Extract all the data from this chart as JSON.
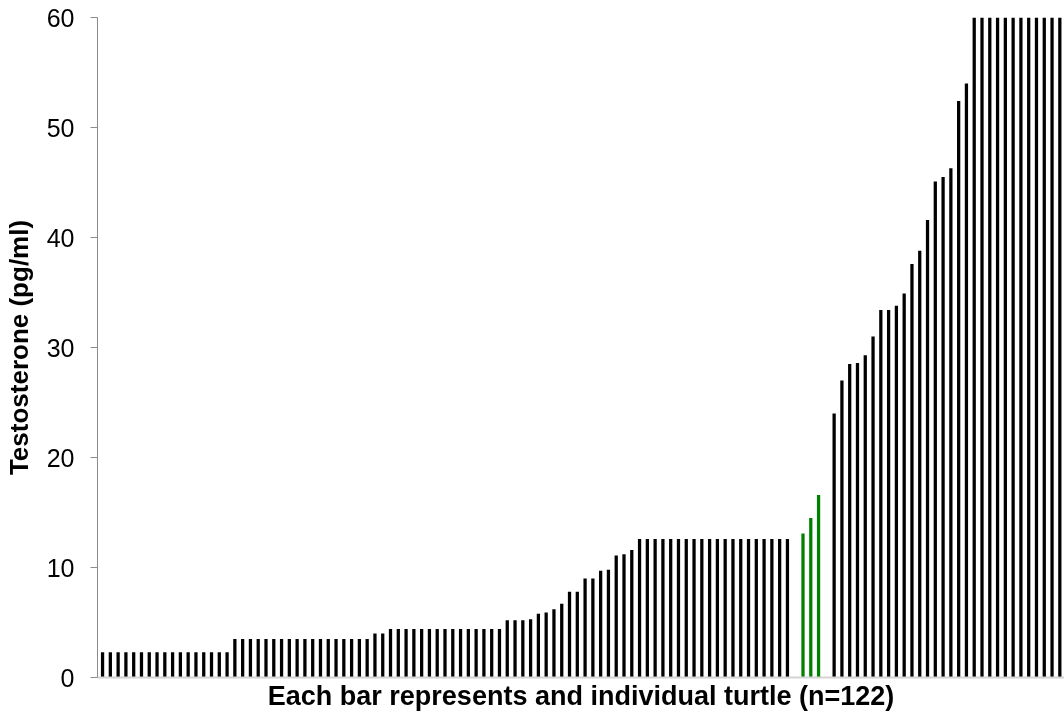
{
  "chart_data": {
    "type": "bar",
    "xlabel": "Each bar represents and individual turtle (n=122)",
    "ylabel": "Testosterone (pg/ml)",
    "categories": [
      null,
      null,
      null,
      null,
      null,
      null,
      null,
      null,
      null,
      null,
      null,
      null,
      null,
      null,
      null,
      null,
      null,
      null,
      null,
      null,
      null,
      null,
      null,
      null,
      null,
      null,
      null,
      null,
      null,
      null,
      null,
      null,
      null,
      null,
      null,
      null,
      null,
      null,
      null,
      null,
      null,
      null,
      null,
      null,
      null,
      null,
      null,
      null,
      null,
      null,
      null,
      null,
      null,
      null,
      null,
      null,
      null,
      null,
      null,
      null,
      null,
      null,
      null,
      null,
      null,
      null,
      null,
      null,
      null,
      null,
      null,
      null,
      null,
      null,
      null,
      null,
      null,
      null,
      null,
      null,
      null,
      null,
      null,
      null,
      null,
      null,
      null,
      null,
      null,
      null,
      null,
      null,
      null,
      null,
      null,
      null,
      null,
      null,
      null,
      null,
      null,
      null,
      null,
      null,
      null,
      null,
      null,
      null,
      null,
      null,
      null,
      null,
      null,
      null,
      null,
      null,
      null,
      null,
      null,
      null,
      null,
      null,
      null,
      null
    ],
    "values": [
      2.3,
      2.3,
      2.3,
      2.3,
      2.3,
      2.3,
      2.3,
      2.3,
      2.3,
      2.3,
      2.3,
      2.3,
      2.3,
      2.3,
      2.3,
      2.3,
      2.3,
      3.5,
      3.5,
      3.5,
      3.5,
      3.5,
      3.5,
      3.5,
      3.5,
      3.5,
      3.5,
      3.5,
      3.5,
      3.5,
      3.5,
      3.5,
      3.5,
      3.5,
      3.5,
      4.0,
      4.0,
      4.4,
      4.4,
      4.4,
      4.4,
      4.4,
      4.4,
      4.4,
      4.4,
      4.4,
      4.4,
      4.4,
      4.4,
      4.4,
      4.4,
      4.4,
      5.2,
      5.2,
      5.2,
      5.3,
      5.8,
      5.9,
      6.2,
      6.7,
      7.8,
      7.8,
      9.0,
      9.0,
      9.7,
      9.8,
      11.1,
      11.2,
      11.6,
      12.6,
      12.6,
      12.6,
      12.6,
      12.6,
      12.6,
      12.6,
      12.6,
      12.6,
      12.6,
      12.6,
      12.6,
      12.6,
      12.6,
      12.6,
      12.6,
      12.6,
      12.6,
      12.6,
      12.6,
      null,
      13.1,
      14.5,
      16.6,
      null,
      24.0,
      27.0,
      28.5,
      28.6,
      29.3,
      31.0,
      33.4,
      33.4,
      33.8,
      34.9,
      37.6,
      38.8,
      41.6,
      45.1,
      45.5,
      46.3,
      52.4,
      54.0,
      60,
      60,
      60,
      60,
      60,
      60,
      60,
      60,
      60,
      60,
      60,
      60
    ],
    "colors": [
      "#000000",
      "#000000",
      "#000000",
      "#000000",
      "#000000",
      "#000000",
      "#000000",
      "#000000",
      "#000000",
      "#000000",
      "#000000",
      "#000000",
      "#000000",
      "#000000",
      "#000000",
      "#000000",
      "#000000",
      "#000000",
      "#000000",
      "#000000",
      "#000000",
      "#000000",
      "#000000",
      "#000000",
      "#000000",
      "#000000",
      "#000000",
      "#000000",
      "#000000",
      "#000000",
      "#000000",
      "#000000",
      "#000000",
      "#000000",
      "#000000",
      "#000000",
      "#000000",
      "#000000",
      "#000000",
      "#000000",
      "#000000",
      "#000000",
      "#000000",
      "#000000",
      "#000000",
      "#000000",
      "#000000",
      "#000000",
      "#000000",
      "#000000",
      "#000000",
      "#000000",
      "#000000",
      "#000000",
      "#000000",
      "#000000",
      "#000000",
      "#000000",
      "#000000",
      "#000000",
      "#000000",
      "#000000",
      "#000000",
      "#000000",
      "#000000",
      "#000000",
      "#000000",
      "#000000",
      "#000000",
      "#000000",
      "#000000",
      "#000000",
      "#000000",
      "#000000",
      "#000000",
      "#000000",
      "#000000",
      "#000000",
      "#000000",
      "#000000",
      "#000000",
      "#000000",
      "#000000",
      "#000000",
      "#000000",
      "#000000",
      "#000000",
      "#000000",
      "#000000",
      "#000000",
      "#008000",
      "#008000",
      "#008000",
      "#000000",
      "#000000",
      "#000000",
      "#000000",
      "#000000",
      "#000000",
      "#000000",
      "#000000",
      "#000000",
      "#000000",
      "#000000",
      "#000000",
      "#000000",
      "#000000",
      "#000000",
      "#000000",
      "#000000",
      "#000000",
      "#000000",
      "#000000",
      "#000000",
      "#000000",
      "#000000",
      "#000000",
      "#000000",
      "#000000",
      "#000000",
      "#000000",
      "#000000",
      "#000000",
      "#000000"
    ],
    "ylim": [
      0,
      60
    ],
    "yticks": [
      0,
      10,
      20,
      30,
      40,
      50,
      60
    ]
  }
}
